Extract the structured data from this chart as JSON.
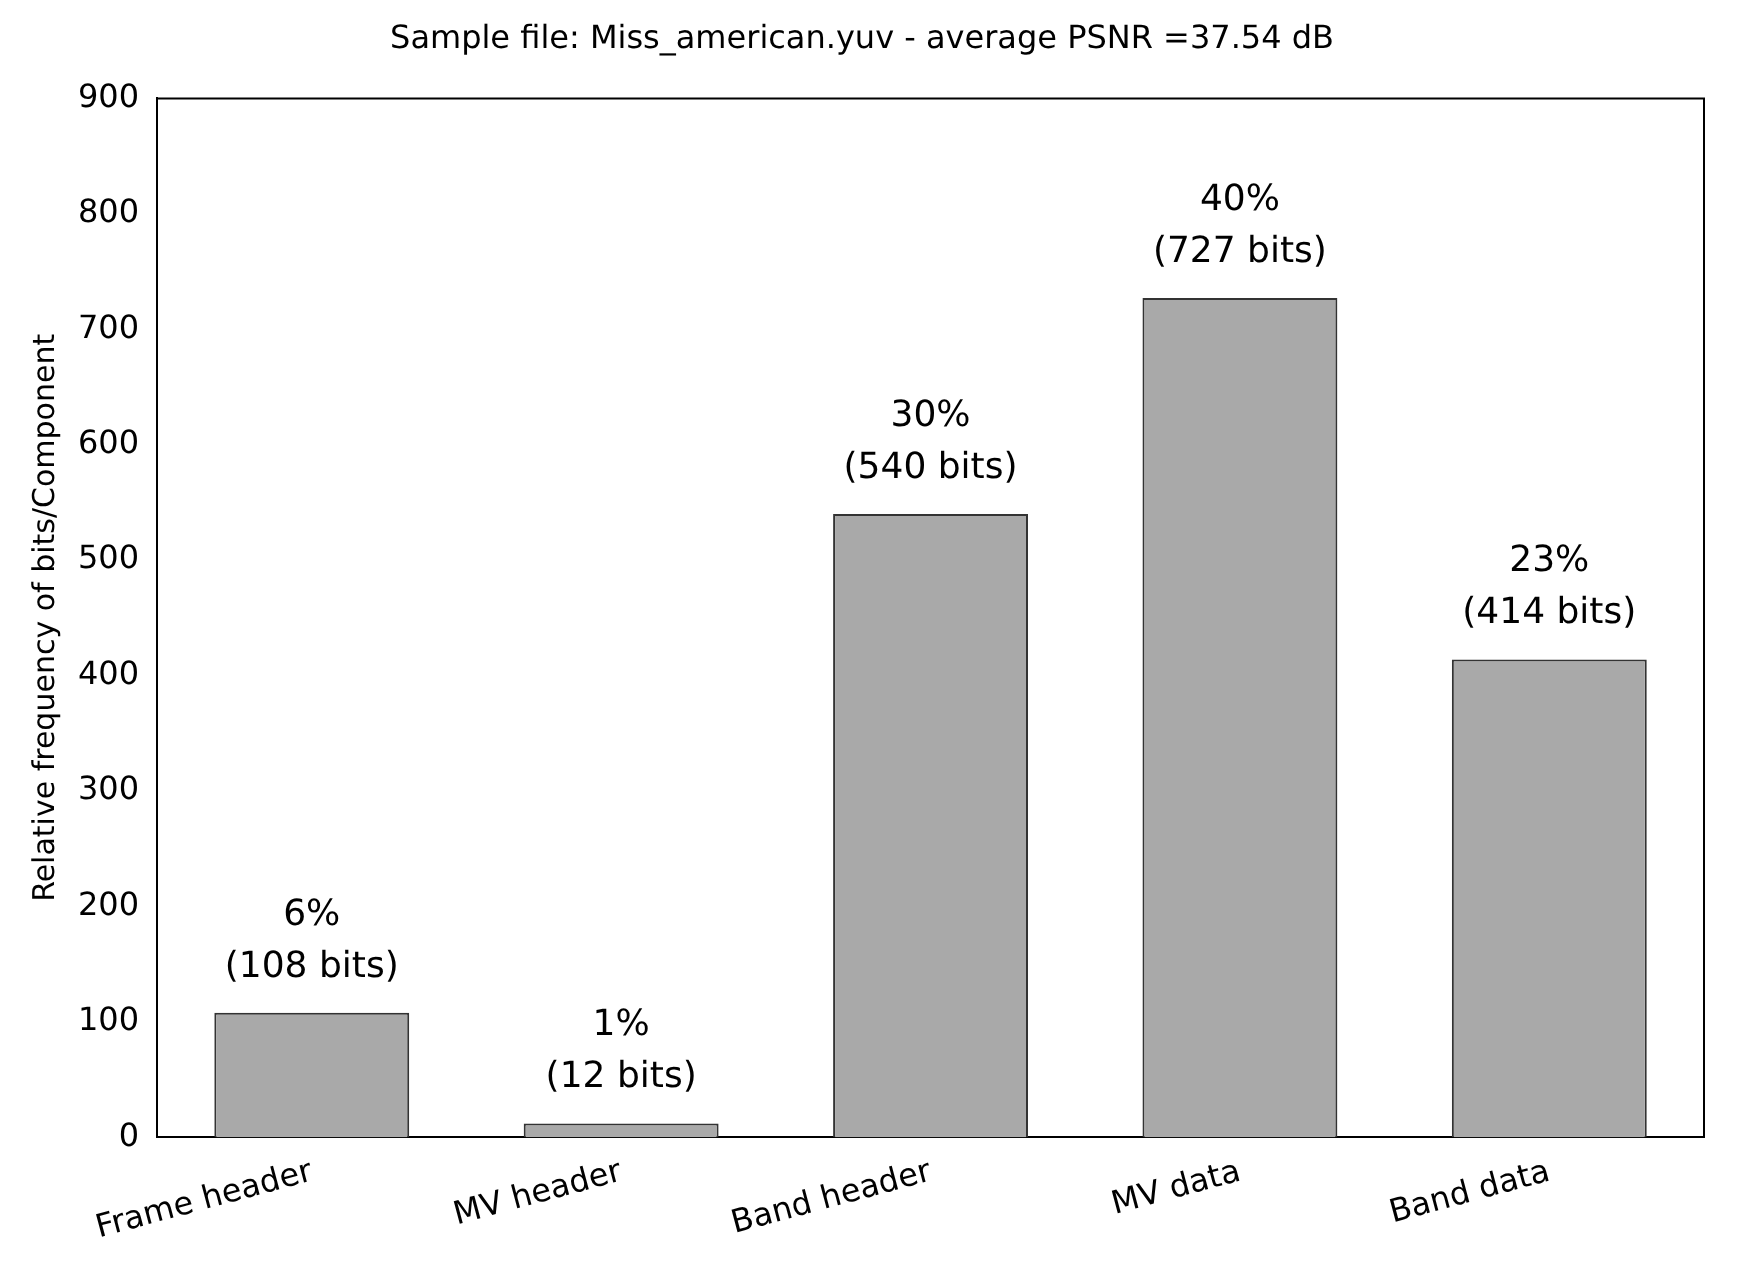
{
  "chart_data": {
    "type": "bar",
    "title": "Sample file: Miss_american.yuv - average PSNR =37.54 dB",
    "ylabel": "Relative frequency of bits/Component",
    "categories": [
      "Frame header",
      "MV header",
      "Band header",
      "MV data",
      "Band data"
    ],
    "values": [
      108,
      12,
      540,
      727,
      414
    ],
    "color": "#a9a9a9",
    "value_labels": [
      "6%\n(108 bits)",
      "1%\n(12 bits)",
      "30%\n(540 bits)",
      "40%\n(727 bits)",
      "23%\n(414 bits)"
    ],
    "ylim": [
      0,
      900
    ],
    "yticks": [
      0,
      100,
      200,
      300,
      400,
      500,
      600,
      700,
      800,
      900
    ],
    "grid": false,
    "legend": false
  }
}
